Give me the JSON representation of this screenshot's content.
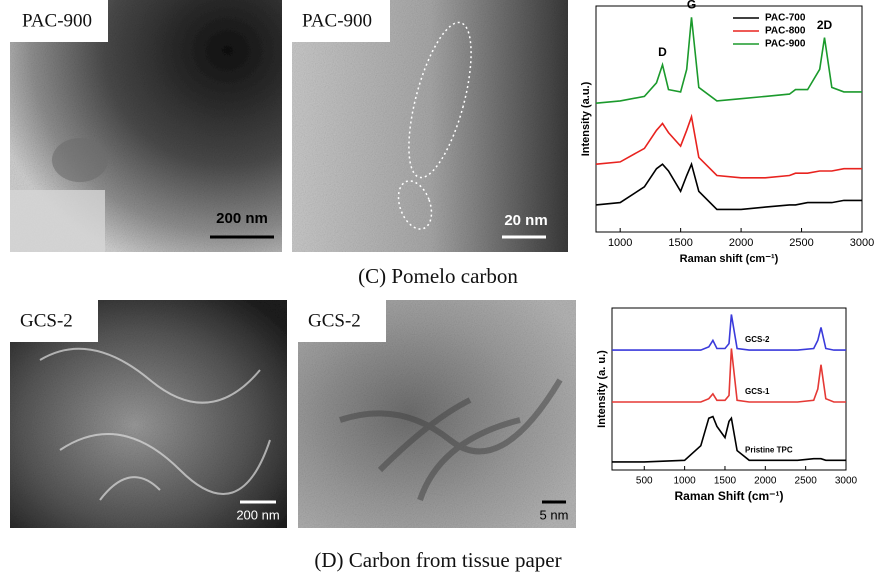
{
  "panels": [
    {
      "label": "PAC-900",
      "scale_bar": "200 nm"
    },
    {
      "label": "PAC-900",
      "scale_bar": "20 nm"
    },
    {
      "label": "GCS-2",
      "scale_bar": "200 nm"
    },
    {
      "label": "GCS-2",
      "scale_bar": "5 nm"
    }
  ],
  "captions": [
    "(C) Pomelo carbon",
    "(D) Carbon from tissue paper"
  ],
  "chart_data": [
    {
      "type": "line",
      "xlabel": "Raman shift (cm⁻¹)",
      "ylabel": "Intensity (a.u.)",
      "x": [
        800,
        1000,
        1200,
        1300,
        1350,
        1400,
        1500,
        1550,
        1590,
        1650,
        1800,
        2000,
        2200,
        2400,
        2450,
        2550,
        2650,
        2690,
        2750,
        2850,
        3000
      ],
      "xlim": [
        800,
        3000
      ],
      "xticks": [
        1000,
        1500,
        2000,
        2500,
        3000
      ],
      "ylim": [
        0,
        100
      ],
      "legend": "upper center",
      "annotations": [
        {
          "text": "D",
          "x": 1350
        },
        {
          "text": "G",
          "x": 1590
        },
        {
          "text": "2D",
          "x": 2690
        }
      ],
      "series": [
        {
          "name": "PAC-700",
          "color": "#000000",
          "values": [
            12,
            13,
            20,
            28,
            30,
            27,
            18,
            25,
            30,
            18,
            10,
            10,
            11,
            12,
            12,
            13,
            13,
            13,
            13,
            14,
            14
          ]
        },
        {
          "name": "PAC-800",
          "color": "#e8231f",
          "values": [
            30,
            31,
            37,
            45,
            48,
            44,
            38,
            45,
            51,
            33,
            25,
            24,
            24,
            25,
            26,
            26,
            27,
            27,
            27,
            28,
            28
          ]
        },
        {
          "name": "PAC-900",
          "color": "#1b9a2c",
          "values": [
            57,
            58,
            60,
            66,
            74,
            63,
            62,
            72,
            95,
            64,
            58,
            59,
            60,
            61,
            63,
            63,
            72,
            86,
            64,
            62,
            62
          ]
        }
      ]
    },
    {
      "type": "line",
      "xlabel": "Raman Shift (cm⁻¹)",
      "ylabel": "Intensity (a. u.)",
      "x": [
        100,
        500,
        1000,
        1200,
        1300,
        1350,
        1400,
        1500,
        1550,
        1580,
        1650,
        1800,
        2000,
        2400,
        2600,
        2650,
        2690,
        2750,
        2850,
        3000
      ],
      "xlim": [
        100,
        3000
      ],
      "xticks": [
        500,
        1000,
        1500,
        2000,
        2500,
        3000
      ],
      "ylim": [
        0,
        100
      ],
      "legend": "inline",
      "series": [
        {
          "name": "Pristine TPC",
          "color": "#000000",
          "values": [
            5,
            5,
            6,
            15,
            32,
            33,
            27,
            20,
            30,
            32,
            12,
            6,
            6,
            6,
            7,
            7,
            7,
            6,
            6,
            6
          ]
        },
        {
          "name": "GCS-1",
          "color": "#e53935",
          "values": [
            42,
            42,
            42,
            42,
            44,
            47,
            43,
            43,
            46,
            75,
            43,
            42,
            42,
            42,
            43,
            50,
            65,
            44,
            42,
            42
          ]
        },
        {
          "name": "GCS-2",
          "color": "#3a3adb",
          "values": [
            74,
            74,
            74,
            74,
            76,
            80,
            75,
            75,
            78,
            96,
            75,
            74,
            74,
            74,
            75,
            80,
            88,
            75,
            74,
            74
          ]
        }
      ]
    }
  ]
}
